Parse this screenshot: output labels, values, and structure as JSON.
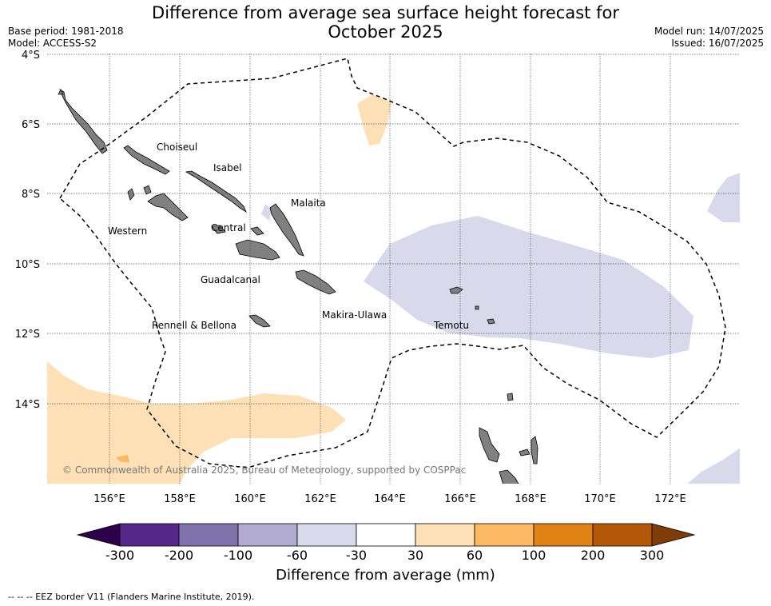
{
  "title_line1": "Difference from average sea surface height forecast for",
  "title_line2": "October 2025",
  "base_period": "Base period: 1981-2018",
  "model": "Model: ACCESS-S2",
  "model_run": "Model run: 14/07/2025",
  "issued": "Issued: 16/07/2025",
  "copyright": "© Commonwealth of Australia 2025, Bureau of Meteorology, supported by COSPPac",
  "lat_labels": [
    "4°S",
    "6°S",
    "8°S",
    "10°S",
    "12°S",
    "14°S"
  ],
  "lon_labels": [
    "156°E",
    "158°E",
    "160°E",
    "162°E",
    "164°E",
    "166°E",
    "168°E",
    "170°E",
    "172°E"
  ],
  "regions": {
    "choiseul": "Choiseul",
    "isabel": "Isabel",
    "malaita": "Malaita",
    "western": "Western",
    "central": "Central",
    "guadalcanal": "Guadalcanal",
    "makira_ulawa": "Makira-Ulawa",
    "rennell_bellona": "Rennell & Bellona",
    "temotu": "Temotu"
  },
  "colorbar": {
    "title": "Difference from average (mm)",
    "labels": [
      "-300",
      "-200",
      "-100",
      "-60",
      "-30",
      "30",
      "60",
      "100",
      "200",
      "300"
    ],
    "colors": [
      "#2d004b",
      "#542788",
      "#8073ac",
      "#b2abd2",
      "#d8daeb",
      "#ffffff",
      "#fee0b6",
      "#fdb863",
      "#e08214",
      "#b35806",
      "#7f3b08"
    ]
  },
  "eez_legend": "--  --  -- EEZ border V11 (Flanders Marine Institute, 2019)."
}
